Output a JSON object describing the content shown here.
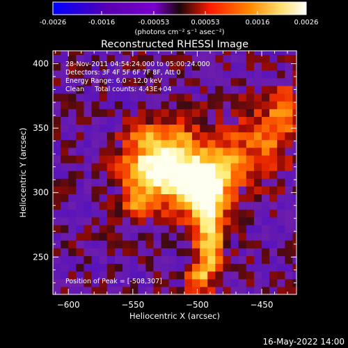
{
  "colorbar": {
    "tick_labels": [
      "-0.0026",
      "-0.0016",
      "-0.00053",
      "0.00053",
      "0.0016",
      "0.0026"
    ],
    "units_label": "(photons cm⁻² s⁻¹ asec⁻²)",
    "range": [
      -0.0026,
      0.0026
    ]
  },
  "chart_data": {
    "type": "heatmap",
    "title": "Reconstructed RHESSI Image",
    "xlabel": "Heliocentric X (arcsec)",
    "ylabel": "Heliocentric Y (arcsec)",
    "xlim": [
      -612,
      -423
    ],
    "ylim": [
      221,
      410
    ],
    "x_ticks": [
      -600,
      -550,
      -500,
      -450
    ],
    "y_ticks": [
      250,
      300,
      350,
      400
    ],
    "annotations": [
      "28-Nov-2011 04:54:24.000 to 05:00:24.000",
      "Detectors: 3F 4F 5F 6F 7F 8F, Att 0",
      "Energy Range: 6.0 - 12.0 keV",
      "Clean     Total counts: 4.43E+04"
    ],
    "peak_label": "Position of Peak = [-508,307]",
    "peak": [
      -508,
      307
    ],
    "colormap": [
      "#0000ff",
      "#5a00b0",
      "#7a00d0",
      "#3a0a10",
      "#ff1a00",
      "#ff8a00",
      "#ffe070",
      "#ffffff"
    ],
    "pixel_size_arcsec": 6,
    "emission_components": [
      {
        "x": -515,
        "y": 318,
        "sx": 16,
        "sy": 22,
        "amp": 1.0
      },
      {
        "x": -495,
        "y": 305,
        "sx": 10,
        "sy": 14,
        "amp": 0.75
      },
      {
        "x": -540,
        "y": 320,
        "sx": 14,
        "sy": 12,
        "amp": 0.7
      },
      {
        "x": -548,
        "y": 292,
        "sx": 8,
        "sy": 10,
        "amp": 0.45
      },
      {
        "x": -490,
        "y": 280,
        "sx": 8,
        "sy": 20,
        "amp": 0.7
      },
      {
        "x": -492,
        "y": 248,
        "sx": 7,
        "sy": 14,
        "amp": 0.5
      },
      {
        "x": -478,
        "y": 318,
        "sx": 10,
        "sy": 16,
        "amp": 0.55
      },
      {
        "x": -450,
        "y": 340,
        "sx": 16,
        "sy": 20,
        "amp": 0.45
      },
      {
        "x": -432,
        "y": 365,
        "sx": 8,
        "sy": 14,
        "amp": 0.45
      },
      {
        "x": -540,
        "y": 345,
        "sx": 12,
        "sy": 8,
        "amp": 0.35
      },
      {
        "x": -500,
        "y": 232,
        "sx": 6,
        "sy": 8,
        "amp": 0.45
      }
    ]
  },
  "footer": {
    "date": "16-May-2022 14:00"
  }
}
